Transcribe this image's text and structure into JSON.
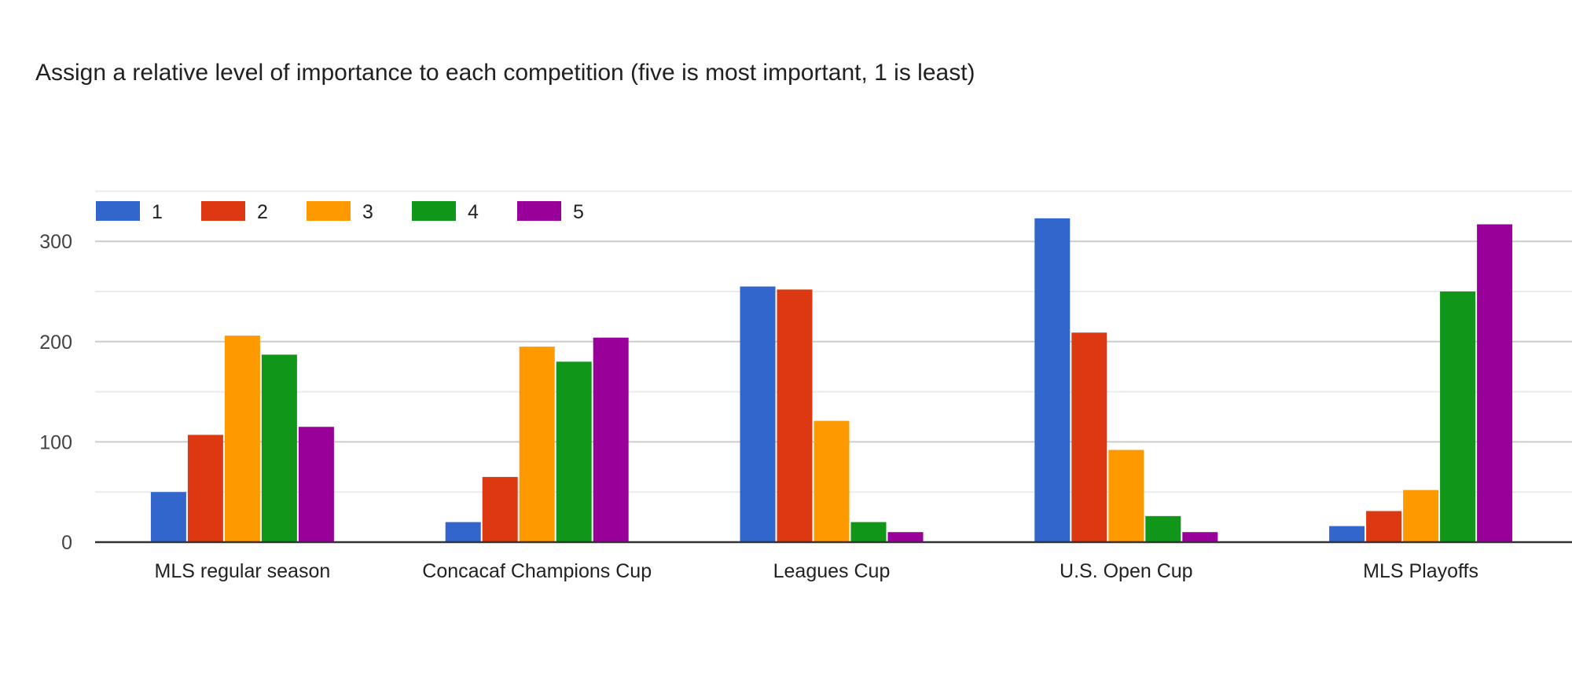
{
  "chart_data": {
    "type": "bar",
    "title": "Assign a relative level of importance to each competition (five is most important, 1 is least)",
    "xlabel": "",
    "ylabel": "",
    "categories": [
      "MLS regular season",
      "Concacaf Champions Cup",
      "Leagues Cup",
      "U.S. Open Cup",
      "MLS Playoffs"
    ],
    "series": [
      {
        "name": "1",
        "color": "#3366cc",
        "values": [
          50,
          20,
          255,
          323,
          16
        ]
      },
      {
        "name": "2",
        "color": "#dc3912",
        "values": [
          107,
          65,
          252,
          209,
          31
        ]
      },
      {
        "name": "3",
        "color": "#ff9900",
        "values": [
          206,
          195,
          121,
          92,
          52
        ]
      },
      {
        "name": "4",
        "color": "#109618",
        "values": [
          187,
          180,
          20,
          26,
          250
        ]
      },
      {
        "name": "5",
        "color": "#990099",
        "values": [
          115,
          204,
          10,
          10,
          317
        ]
      }
    ],
    "ylim": [
      0,
      350
    ],
    "yticks": [
      "0",
      "100",
      "200",
      "300"
    ],
    "grid": true,
    "legend": "top-left"
  }
}
